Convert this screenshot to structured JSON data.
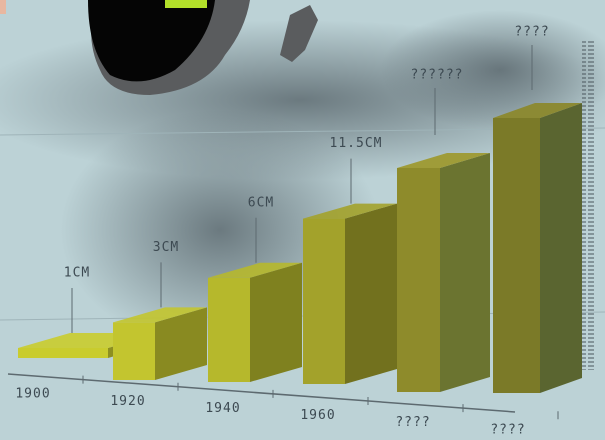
{
  "chart_data": {
    "type": "bar3d",
    "categories": [
      "1900",
      "1920",
      "1940",
      "1960",
      "????",
      "????"
    ],
    "values": [
      1,
      3,
      6,
      11.5,
      null,
      null
    ],
    "value_labels": [
      "1CM",
      "3CM",
      "6CM",
      "11.5CM",
      "??????",
      "????"
    ],
    "colors": [
      "#c9cc2e",
      "#c3c52f",
      "#b6b82c",
      "#a3a22b",
      "#8e8b2b",
      "#7b7a28"
    ]
  }
}
